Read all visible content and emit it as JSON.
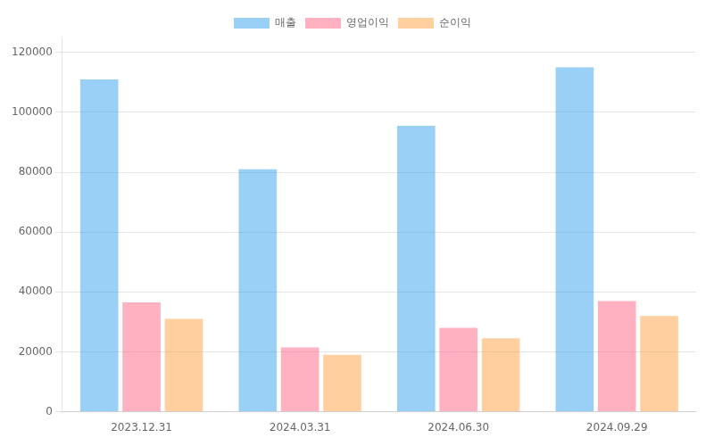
{
  "chart_data": {
    "type": "bar",
    "categories": [
      "2023.12.31",
      "2024.03.31",
      "2024.06.30",
      "2024.09.29"
    ],
    "series": [
      {
        "name": "매출",
        "values": [
          111000,
          81000,
          95500,
          115000
        ]
      },
      {
        "name": "영업이익",
        "values": [
          36500,
          21500,
          28000,
          37000
        ]
      },
      {
        "name": "순이익",
        "values": [
          31000,
          19000,
          24500,
          32000
        ]
      }
    ],
    "ylim": [
      0,
      125000
    ],
    "yticks": [
      0,
      20000,
      40000,
      60000,
      80000,
      100000,
      120000
    ],
    "grid": true,
    "legend": "top"
  }
}
